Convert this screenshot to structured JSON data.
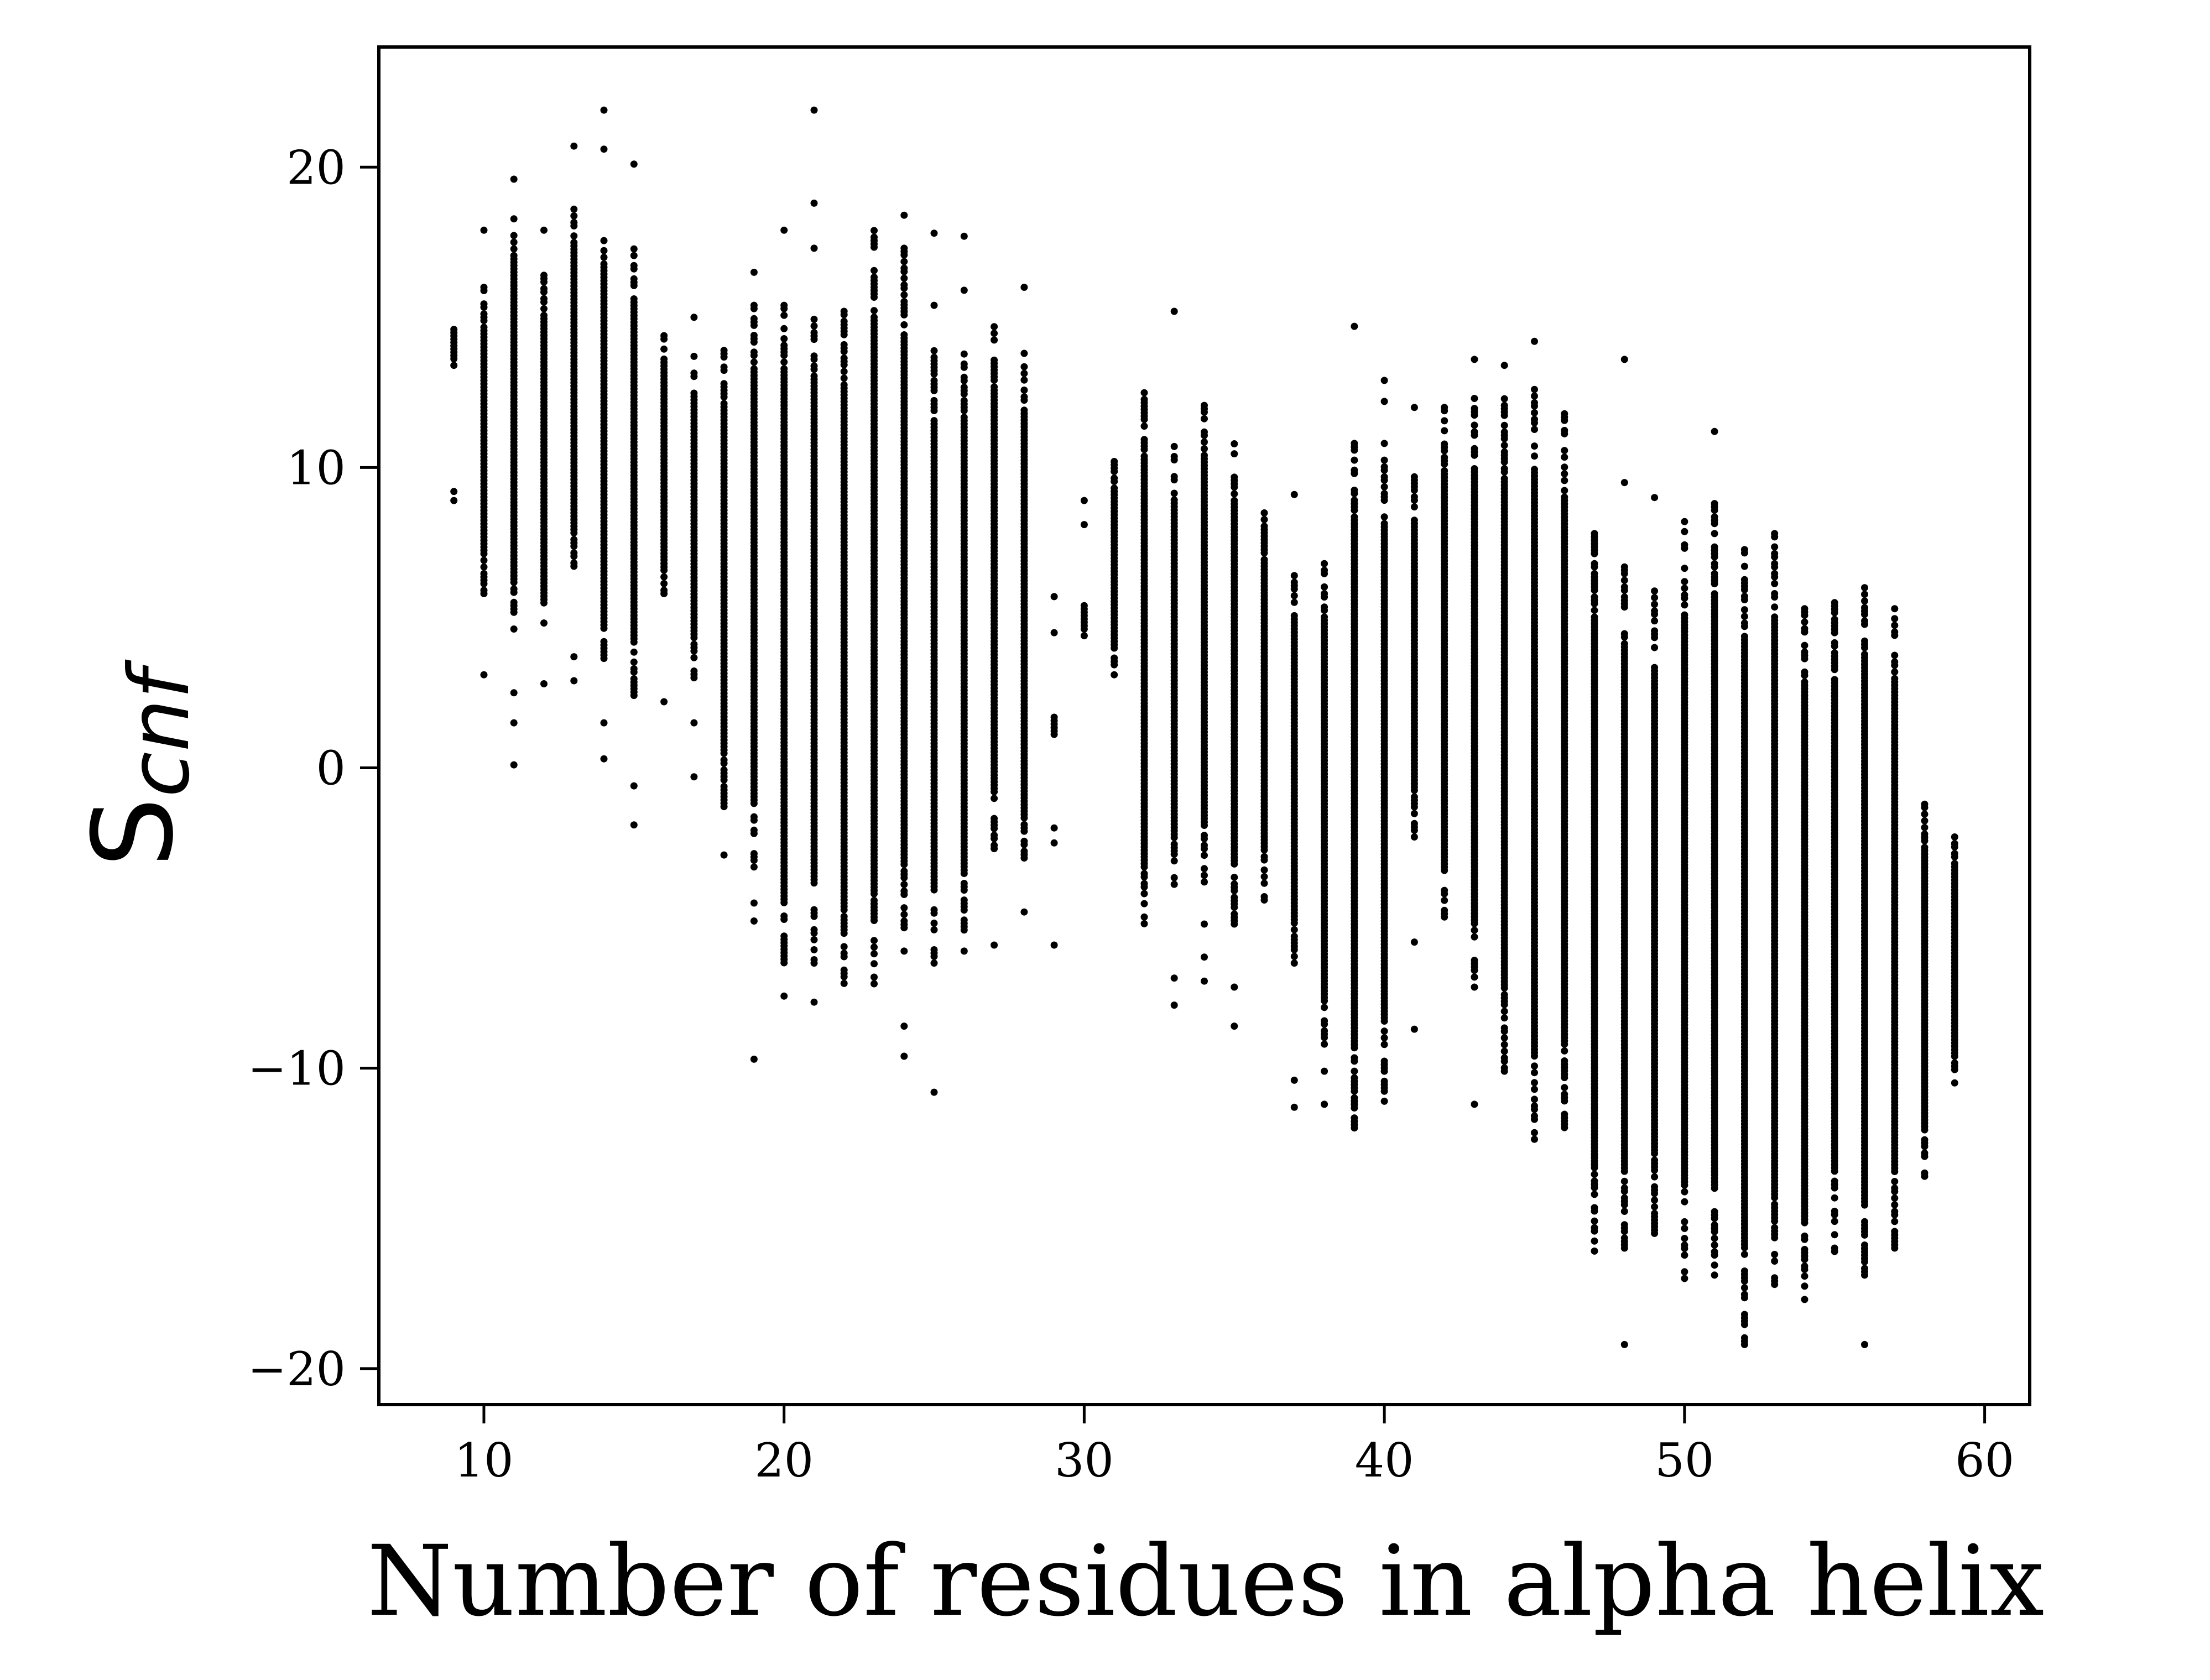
{
  "chart_data": {
    "type": "scatter",
    "title": "",
    "xlabel": "Number of residues in alpha helix",
    "ylabel_main": "S",
    "ylabel_sub": "cnf",
    "xlim": [
      6.5,
      61.5
    ],
    "ylim": [
      -21.2,
      24.0
    ],
    "xticks": [
      10,
      20,
      30,
      40,
      50,
      60
    ],
    "xtick_labels": [
      "10",
      "20",
      "30",
      "40",
      "50",
      "60"
    ],
    "yticks": [
      20,
      10,
      0,
      -10,
      -20
    ],
    "ytick_labels": [
      "20",
      "10",
      "0",
      "−10",
      "−20"
    ],
    "grid": false,
    "legend": "none",
    "marker_color": "#000000",
    "series": [
      {
        "note_columns": "each column: x, [min, max] dense range, extra outliers",
        "columns": [
          {
            "x": 9,
            "range": [
              13.4,
              14.6
            ],
            "extra": [
              9.2,
              8.9
            ]
          },
          {
            "x": 10,
            "range": [
              5.8,
              16.0
            ],
            "extra": [
              17.9,
              3.1
            ]
          },
          {
            "x": 11,
            "range": [
              4.4,
              18.5
            ],
            "extra": [
              19.6,
              2.5,
              1.5,
              0.1
            ]
          },
          {
            "x": 12,
            "range": [
              4.6,
              16.4
            ],
            "extra": [
              17.9,
              2.8
            ]
          },
          {
            "x": 13,
            "range": [
              6.6,
              18.6
            ],
            "extra": [
              20.7,
              3.7,
              2.9
            ]
          },
          {
            "x": 14,
            "range": [
              3.2,
              18.0
            ],
            "extra": [
              21.9,
              20.6,
              1.5,
              0.3
            ]
          },
          {
            "x": 15,
            "range": [
              2.3,
              17.5
            ],
            "extra": [
              20.1,
              -0.6,
              -1.9
            ]
          },
          {
            "x": 16,
            "range": [
              5.8,
              14.5
            ],
            "extra": [
              2.2
            ]
          },
          {
            "x": 17,
            "range": [
              3.0,
              13.7
            ],
            "extra": [
              15.0,
              1.5,
              -0.3
            ]
          },
          {
            "x": 18,
            "range": [
              -1.4,
              13.9
            ],
            "extra": [
              -2.9
            ]
          },
          {
            "x": 19,
            "range": [
              -3.3,
              15.4
            ],
            "extra": [
              16.5,
              -4.5,
              -5.1,
              -9.7
            ]
          },
          {
            "x": 20,
            "range": [
              -6.6,
              15.4
            ],
            "extra": [
              17.9,
              -7.6
            ]
          },
          {
            "x": 21,
            "range": [
              -6.5,
              15.6
            ],
            "extra": [
              18.8,
              17.3,
              21.9,
              -7.8
            ]
          },
          {
            "x": 22,
            "range": [
              -7.4,
              15.2
            ],
            "extra": []
          },
          {
            "x": 23,
            "range": [
              -7.3,
              18.0
            ],
            "extra": []
          },
          {
            "x": 24,
            "range": [
              -6.1,
              17.3
            ],
            "extra": [
              18.4,
              -8.6,
              -9.6
            ]
          },
          {
            "x": 25,
            "range": [
              -6.5,
              14.0
            ],
            "extra": [
              17.8,
              15.4,
              -10.8
            ]
          },
          {
            "x": 26,
            "range": [
              -5.4,
              14.0
            ],
            "extra": [
              17.7,
              15.9,
              -6.1
            ]
          },
          {
            "x": 27,
            "range": [
              -2.8,
              14.8
            ],
            "extra": [
              -5.9
            ]
          },
          {
            "x": 28,
            "range": [
              -3.0,
              13.8
            ],
            "extra": [
              16.0,
              -4.8
            ]
          },
          {
            "x": 29,
            "range": [
              1.0,
              1.8
            ],
            "extra": [
              5.7,
              4.5,
              -2.0,
              -2.5,
              -5.9
            ]
          },
          {
            "x": 30,
            "range": [
              4.4,
              5.4
            ],
            "extra": [
              8.9,
              8.1
            ]
          },
          {
            "x": 31,
            "range": [
              3.1,
              10.2
            ],
            "extra": []
          },
          {
            "x": 32,
            "range": [
              -5.3,
              12.6
            ],
            "extra": []
          },
          {
            "x": 33,
            "range": [
              -4.1,
              10.7
            ],
            "extra": [
              15.2,
              -7.0,
              -7.9
            ]
          },
          {
            "x": 34,
            "range": [
              -3.8,
              12.4
            ],
            "extra": [
              -5.2,
              -6.3,
              -7.1
            ]
          },
          {
            "x": 35,
            "range": [
              -5.2,
              10.9
            ],
            "extra": [
              -7.3,
              -8.6
            ]
          },
          {
            "x": 36,
            "range": [
              -4.4,
              8.6
            ],
            "extra": []
          },
          {
            "x": 37,
            "range": [
              -6.5,
              6.4
            ],
            "extra": [
              9.1,
              -10.4,
              -11.3
            ]
          },
          {
            "x": 38,
            "range": [
              -9.2,
              6.8
            ],
            "extra": [
              -10.1,
              -11.2
            ]
          },
          {
            "x": 39,
            "range": [
              -12.1,
              10.8
            ],
            "extra": [
              14.7
            ]
          },
          {
            "x": 40,
            "range": [
              -11.1,
              10.8
            ],
            "extra": [
              12.9,
              12.2
            ]
          },
          {
            "x": 41,
            "range": [
              -2.3,
              9.8
            ],
            "extra": [
              12.0,
              -5.8,
              -8.7
            ]
          },
          {
            "x": 42,
            "range": [
              -5.3,
              12.0
            ],
            "extra": []
          },
          {
            "x": 43,
            "range": [
              -7.3,
              12.3
            ],
            "extra": [
              13.6,
              -11.2
            ]
          },
          {
            "x": 44,
            "range": [
              -10.1,
              12.4
            ],
            "extra": [
              13.4
            ]
          },
          {
            "x": 45,
            "range": [
              -12.7,
              12.6
            ],
            "extra": [
              14.2
            ]
          },
          {
            "x": 46,
            "range": [
              -12.2,
              11.9
            ],
            "extra": []
          },
          {
            "x": 47,
            "range": [
              -16.2,
              7.8
            ],
            "extra": []
          },
          {
            "x": 48,
            "range": [
              -16.1,
              6.8
            ],
            "extra": [
              9.5,
              13.6,
              -19.2
            ]
          },
          {
            "x": 49,
            "range": [
              -15.5,
              6.0
            ],
            "extra": [
              9.0
            ]
          },
          {
            "x": 50,
            "range": [
              -17.0,
              8.2
            ],
            "extra": []
          },
          {
            "x": 51,
            "range": [
              -17.0,
              8.8
            ],
            "extra": [
              11.2
            ]
          },
          {
            "x": 52,
            "range": [
              -19.2,
              7.6
            ],
            "extra": []
          },
          {
            "x": 53,
            "range": [
              -17.2,
              7.8
            ],
            "extra": []
          },
          {
            "x": 54,
            "range": [
              -17.7,
              5.3
            ],
            "extra": []
          },
          {
            "x": 55,
            "range": [
              -16.1,
              5.5
            ],
            "extra": []
          },
          {
            "x": 56,
            "range": [
              -17.0,
              6.0
            ],
            "extra": [
              -19.2
            ]
          },
          {
            "x": 57,
            "range": [
              -16.1,
              5.3
            ],
            "extra": []
          },
          {
            "x": 58,
            "range": [
              -13.6,
              -1.1
            ],
            "extra": []
          },
          {
            "x": 59,
            "range": [
              -10.6,
              -2.3
            ],
            "extra": []
          }
        ]
      }
    ]
  }
}
